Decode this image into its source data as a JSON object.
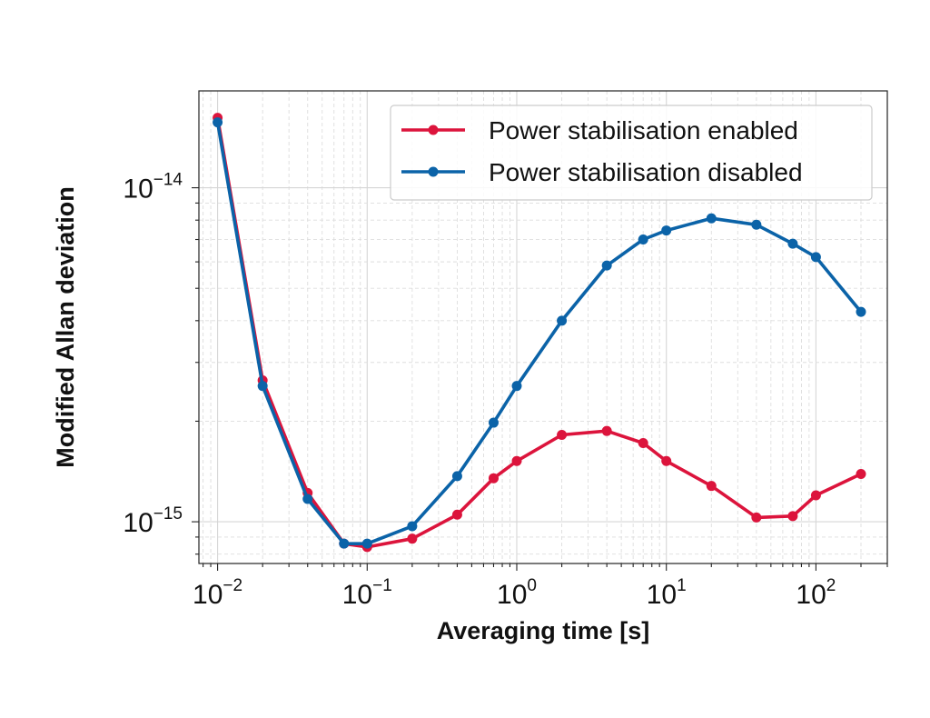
{
  "chart_data": {
    "type": "line",
    "xlabel": "Averaging time [s]",
    "ylabel": "Modified Allan deviation",
    "xscale": "log",
    "yscale": "log",
    "xlim": [
      0.0075,
      300
    ],
    "ylim": [
      7.5e-16,
      1.95e-14
    ],
    "grid": true,
    "legend_position": "top-right",
    "x_ticks": [
      {
        "value": 0.01,
        "base": "10",
        "exp": "−2"
      },
      {
        "value": 0.1,
        "base": "10",
        "exp": "−1"
      },
      {
        "value": 1,
        "base": "10",
        "exp": "0"
      },
      {
        "value": 10,
        "base": "10",
        "exp": "1"
      },
      {
        "value": 100,
        "base": "10",
        "exp": "2"
      }
    ],
    "y_ticks": [
      {
        "value": 1e-15,
        "base": "10",
        "exp": "−15"
      },
      {
        "value": 1e-14,
        "base": "10",
        "exp": "−14"
      }
    ],
    "series": [
      {
        "name": "Power stabilisation enabled",
        "color": "#dc143c",
        "x": [
          0.01,
          0.02,
          0.04,
          0.07,
          0.1,
          0.2,
          0.4,
          0.7,
          1,
          2,
          4,
          7,
          10,
          20,
          40,
          70,
          100,
          200
        ],
        "y": [
          1.62e-14,
          2.65e-15,
          1.22e-15,
          8.6e-16,
          8.4e-16,
          8.9e-16,
          1.05e-15,
          1.35e-15,
          1.52e-15,
          1.82e-15,
          1.87e-15,
          1.72e-15,
          1.52e-15,
          1.28e-15,
          1.03e-15,
          1.04e-15,
          1.2e-15,
          1.39e-15
        ]
      },
      {
        "name": "Power stabilisation disabled",
        "color": "#0b63a8",
        "x": [
          0.01,
          0.02,
          0.04,
          0.07,
          0.1,
          0.2,
          0.4,
          0.7,
          1,
          2,
          4,
          7,
          10,
          20,
          40,
          70,
          100,
          200
        ],
        "y": [
          1.57e-14,
          2.55e-15,
          1.17e-15,
          8.6e-16,
          8.6e-16,
          9.7e-16,
          1.37e-15,
          1.98e-15,
          2.55e-15,
          4e-15,
          5.85e-15,
          7e-15,
          7.45e-15,
          8.1e-15,
          7.75e-15,
          6.8e-15,
          6.2e-15,
          4.25e-15
        ]
      }
    ]
  }
}
